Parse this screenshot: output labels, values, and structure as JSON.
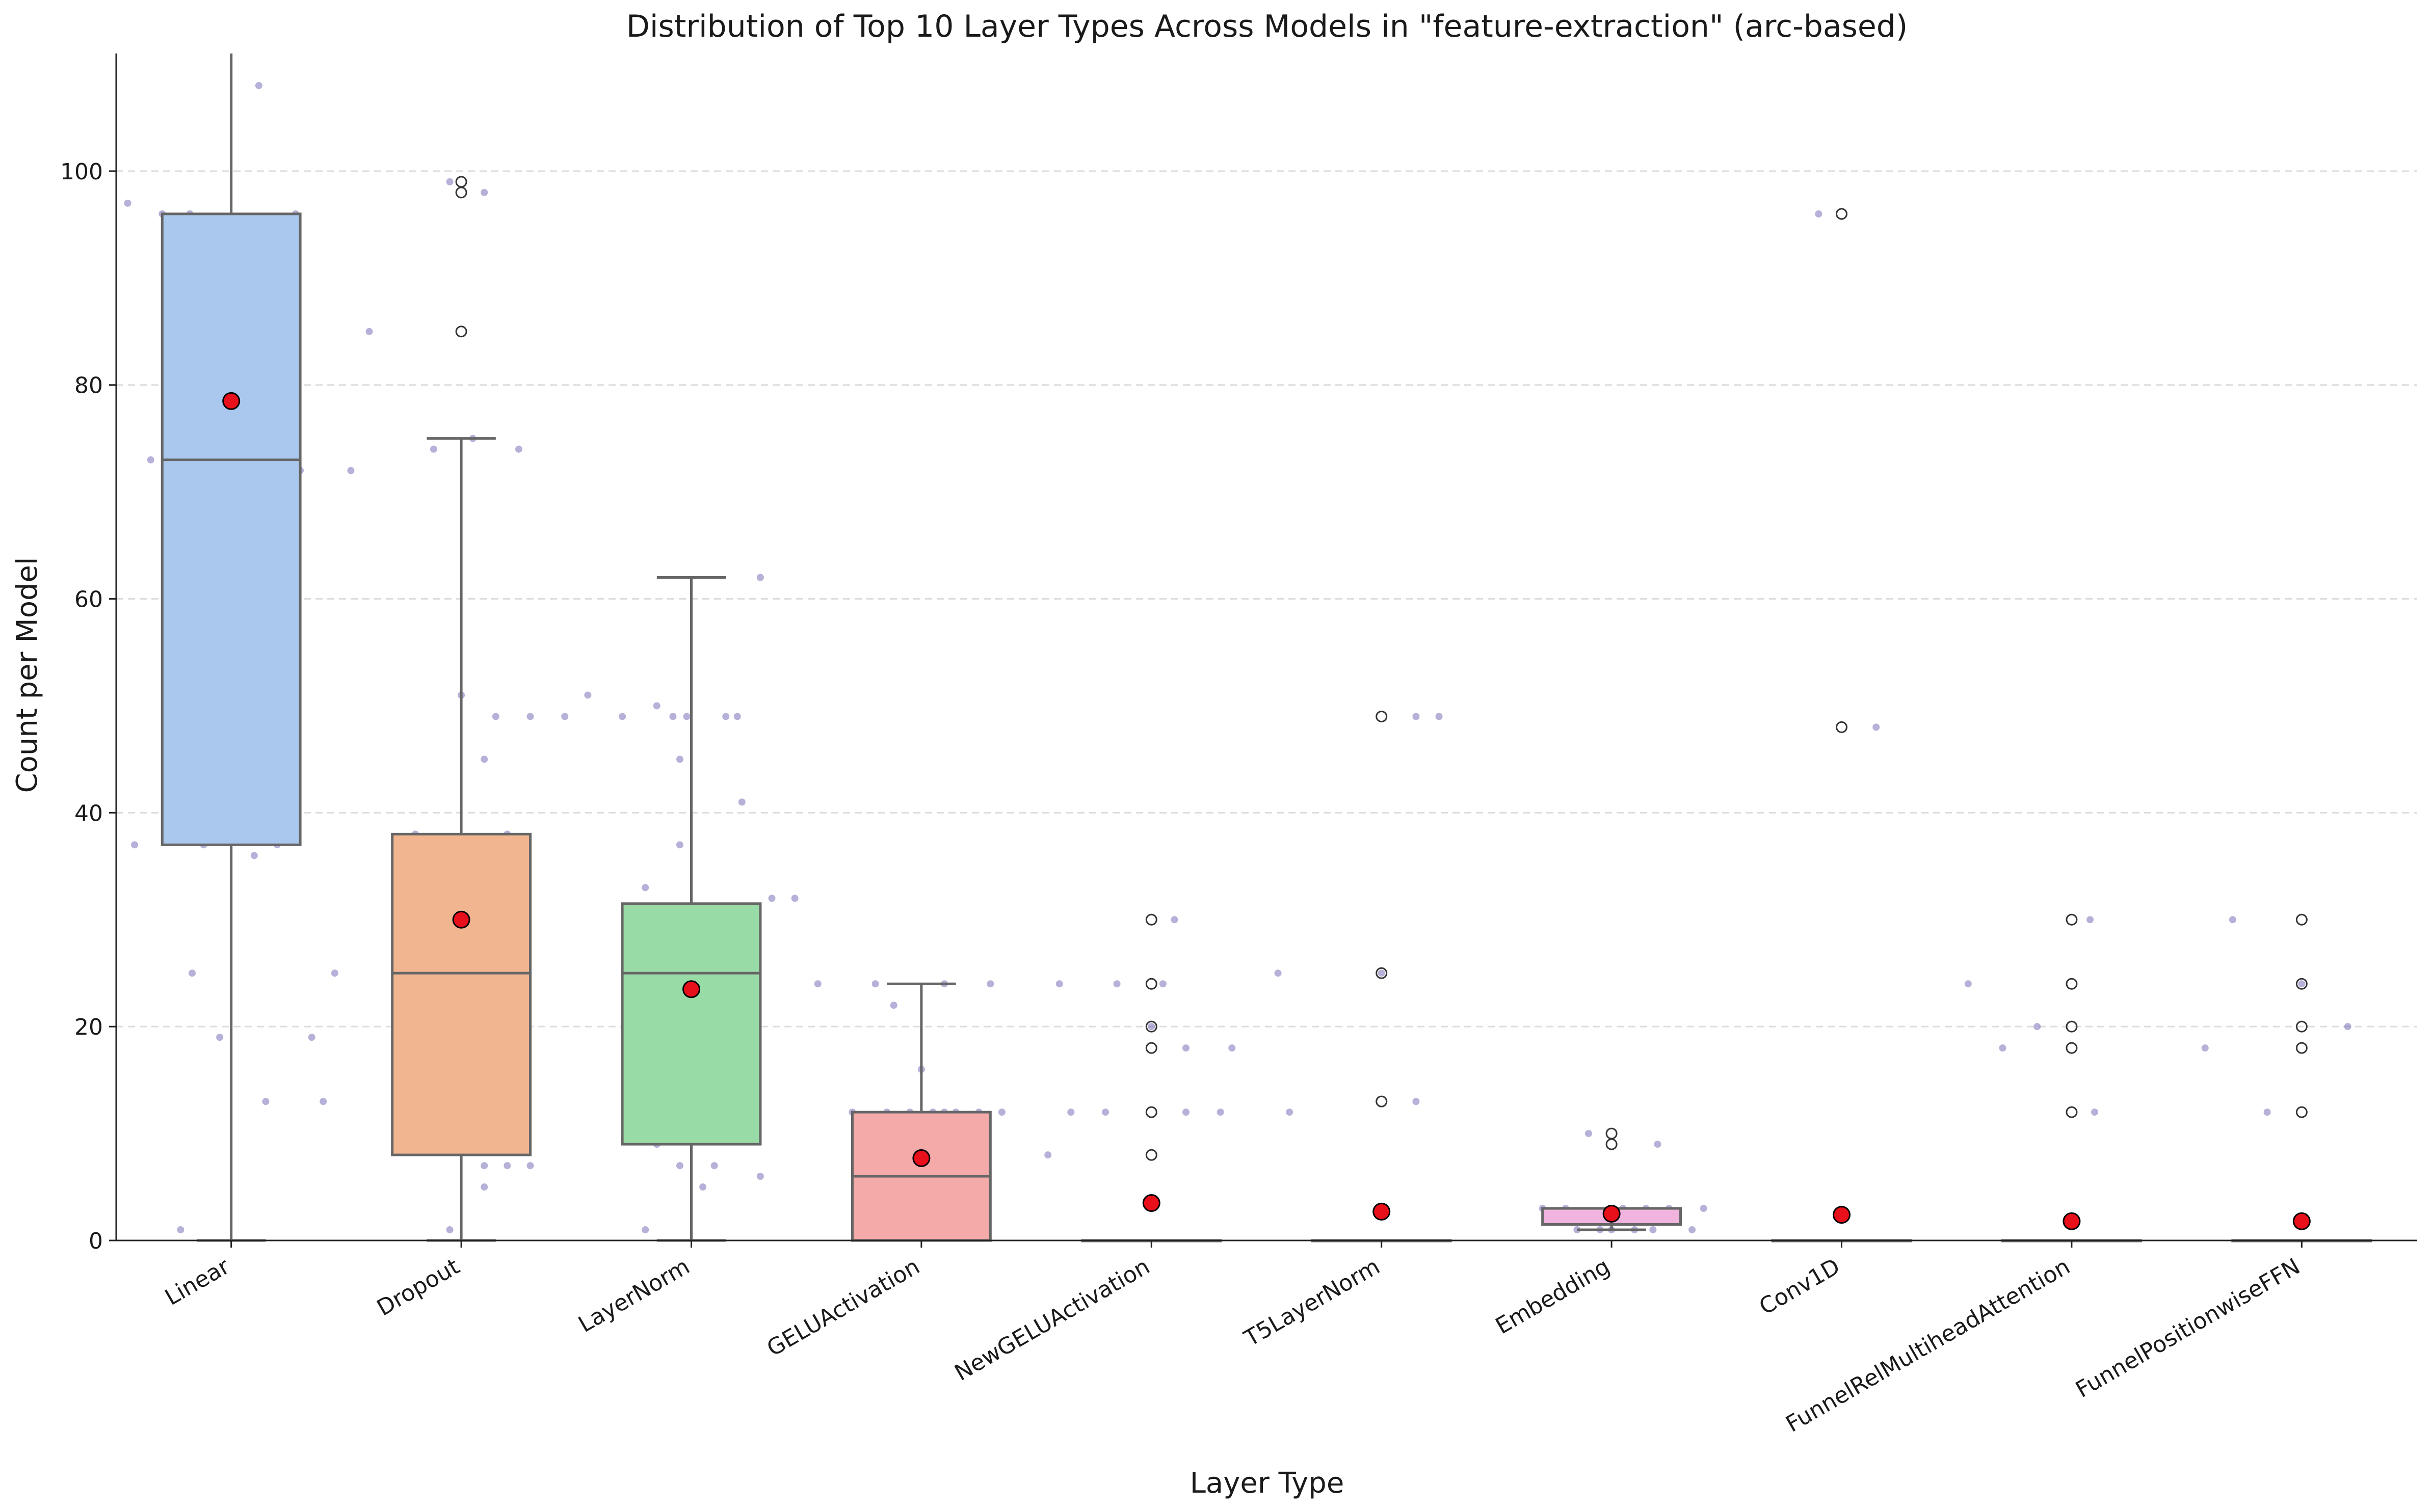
{
  "chart_data": {
    "type": "box",
    "title": "Distribution of Top 10 Layer Types Across Models in \"feature-extraction\" (arc-based)",
    "xlabel": "Layer Type",
    "ylabel": "Count per Model",
    "ylim": [
      0,
      111
    ],
    "yticks": [
      0,
      20,
      40,
      60,
      80,
      100
    ],
    "grid": "y-dashed",
    "legend": "none",
    "mean_marker_color": "#e8101a",
    "strip_color": "#5c52a8",
    "categories": [
      "Linear",
      "Dropout",
      "LayerNorm",
      "GELUActivation",
      "NewGELUActivation",
      "T5LayerNorm",
      "Embedding",
      "Conv1D",
      "FunnelRelMultiheadAttention",
      "FunnelPositionwiseFFN"
    ],
    "boxes": [
      {
        "q1": 37,
        "median": 73,
        "q3": 96,
        "whisker_low": 0,
        "whisker_high": 111,
        "mean": 78.5,
        "fliers": [],
        "color": "#aac8ee"
      },
      {
        "q1": 8,
        "median": 25,
        "q3": 38,
        "whisker_low": 0,
        "whisker_high": 75,
        "mean": 30,
        "fliers": [
          85,
          98,
          99
        ],
        "color": "#f1b690"
      },
      {
        "q1": 9,
        "median": 25,
        "q3": 31.5,
        "whisker_low": 0,
        "whisker_high": 62,
        "mean": 23.5,
        "fliers": [],
        "color": "#99dba6"
      },
      {
        "q1": 0,
        "median": 6,
        "q3": 12,
        "whisker_low": 0,
        "whisker_high": 24,
        "mean": 7.7,
        "fliers": [],
        "color": "#f3aaa8"
      },
      {
        "q1": 0,
        "median": 0,
        "q3": 0,
        "whisker_low": 0,
        "whisker_high": 0,
        "mean": 3.5,
        "fliers": [
          8,
          12,
          18,
          20,
          24,
          30
        ],
        "color": "#c8b2e0"
      },
      {
        "q1": 0,
        "median": 0,
        "q3": 0,
        "whisker_low": 0,
        "whisker_high": 0,
        "mean": 2.7,
        "fliers": [
          13,
          25,
          49
        ],
        "color": "#d9c0a8"
      },
      {
        "q1": 1.5,
        "median": 3,
        "q3": 3,
        "whisker_low": 1,
        "whisker_high": 3,
        "mean": 2.5,
        "fliers": [
          9,
          10
        ],
        "color": "#f0b4de"
      },
      {
        "q1": 0,
        "median": 0,
        "q3": 0,
        "whisker_low": 0,
        "whisker_high": 0,
        "mean": 2.4,
        "fliers": [
          48,
          96
        ],
        "color": "#cccccc"
      },
      {
        "q1": 0,
        "median": 0,
        "q3": 0,
        "whisker_low": 0,
        "whisker_high": 0,
        "mean": 1.8,
        "fliers": [
          12,
          18,
          20,
          24,
          30
        ],
        "color": "#e0e0a8"
      },
      {
        "q1": 0,
        "median": 0,
        "q3": 0,
        "whisker_low": 0,
        "whisker_high": 0,
        "mean": 1.8,
        "fliers": [
          12,
          18,
          20,
          24,
          30
        ],
        "color": "#b0e0ea"
      }
    ],
    "strip_points": [
      [
        [
          -0.45,
          97
        ],
        [
          -0.3,
          96
        ],
        [
          -0.18,
          96
        ],
        [
          0.12,
          108
        ],
        [
          0.28,
          96
        ],
        [
          0.52,
          72
        ],
        [
          0.3,
          72
        ],
        [
          -0.35,
          73
        ],
        [
          -0.12,
          37
        ],
        [
          0.2,
          37
        ],
        [
          0.1,
          36
        ],
        [
          -0.42,
          37
        ],
        [
          -0.17,
          25
        ],
        [
          0.45,
          25
        ],
        [
          -0.05,
          19
        ],
        [
          0.35,
          19
        ],
        [
          0.15,
          13
        ],
        [
          -0.22,
          1
        ]
      ],
      [
        [
          -0.4,
          85
        ],
        [
          -0.05,
          99
        ],
        [
          0.1,
          98
        ],
        [
          0.05,
          75
        ],
        [
          -0.12,
          74
        ],
        [
          0.25,
          74
        ],
        [
          0.0,
          51
        ],
        [
          0.15,
          49
        ],
        [
          0.3,
          49
        ],
        [
          0.45,
          49
        ],
        [
          0.1,
          45
        ],
        [
          -0.2,
          38
        ],
        [
          0.2,
          38
        ],
        [
          -0.6,
          13
        ],
        [
          0.1,
          7
        ],
        [
          0.2,
          7
        ],
        [
          0.3,
          7
        ],
        [
          -0.05,
          1
        ],
        [
          0.1,
          5
        ]
      ],
      [
        [
          -0.45,
          51
        ],
        [
          -0.3,
          49
        ],
        [
          -0.08,
          49
        ],
        [
          -0.02,
          49
        ],
        [
          0.2,
          49
        ],
        [
          0.15,
          49
        ],
        [
          -0.15,
          50
        ],
        [
          -0.05,
          45
        ],
        [
          0.3,
          62
        ],
        [
          0.22,
          41
        ],
        [
          -0.05,
          37
        ],
        [
          -0.2,
          33
        ],
        [
          0.05,
          31
        ],
        [
          -0.1,
          29
        ],
        [
          0.35,
          32
        ],
        [
          0.45,
          32
        ],
        [
          -0.25,
          10
        ],
        [
          -0.15,
          9
        ],
        [
          -0.05,
          7
        ],
        [
          0.1,
          7
        ],
        [
          0.05,
          5
        ],
        [
          -0.2,
          1
        ]
      ],
      [
        [
          -0.45,
          24
        ],
        [
          -0.2,
          24
        ],
        [
          0.1,
          24
        ],
        [
          0.3,
          24
        ],
        [
          -0.12,
          22
        ],
        [
          0.0,
          16
        ],
        [
          -0.15,
          12
        ],
        [
          -0.05,
          12
        ],
        [
          0.05,
          12
        ],
        [
          0.15,
          12
        ],
        [
          0.25,
          12
        ],
        [
          0.35,
          12
        ],
        [
          -0.3,
          12
        ],
        [
          -0.7,
          6
        ],
        [
          0.1,
          12
        ]
      ],
      [
        [
          -0.4,
          24
        ],
        [
          -0.15,
          24
        ],
        [
          0.05,
          24
        ],
        [
          -0.2,
          12
        ],
        [
          -0.35,
          12
        ],
        [
          0.15,
          12
        ],
        [
          0.3,
          12
        ],
        [
          -0.45,
          8
        ],
        [
          0.15,
          18
        ],
        [
          0.35,
          18
        ],
        [
          0.1,
          30
        ],
        [
          0.0,
          20
        ],
        [
          0.6,
          12
        ]
      ],
      [
        [
          -0.45,
          25
        ],
        [
          0.0,
          25
        ],
        [
          0.15,
          49
        ],
        [
          0.25,
          49
        ],
        [
          0.15,
          13
        ]
      ],
      [
        [
          -0.1,
          10
        ],
        [
          0.2,
          9
        ],
        [
          0.4,
          3
        ],
        [
          -0.3,
          3
        ],
        [
          -0.2,
          3
        ],
        [
          0.05,
          3
        ],
        [
          0.15,
          3
        ],
        [
          0.25,
          3
        ],
        [
          -0.25,
          2
        ],
        [
          -0.05,
          1
        ],
        [
          0.1,
          1
        ],
        [
          0.18,
          1
        ],
        [
          -0.15,
          1
        ],
        [
          0.0,
          1
        ],
        [
          0.35,
          1
        ]
      ],
      [
        [
          -0.1,
          96
        ],
        [
          0.15,
          48
        ]
      ],
      [
        [
          -0.45,
          24
        ],
        [
          -0.15,
          20
        ],
        [
          -0.3,
          18
        ],
        [
          0.08,
          30
        ],
        [
          0.1,
          12
        ]
      ],
      [
        [
          -0.3,
          30
        ],
        [
          0.2,
          20
        ],
        [
          -0.42,
          18
        ],
        [
          -0.15,
          12
        ],
        [
          0.0,
          24
        ]
      ]
    ]
  }
}
